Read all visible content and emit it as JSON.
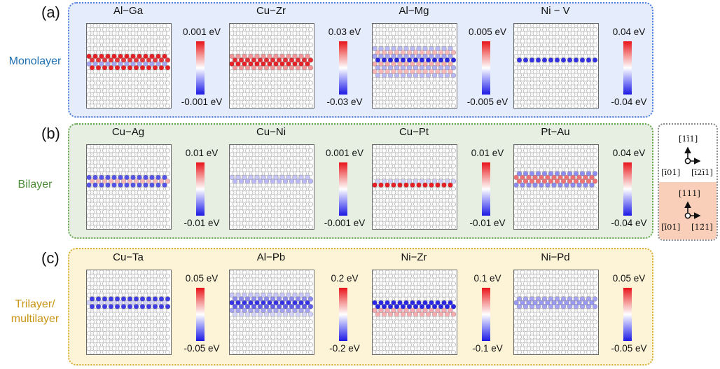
{
  "figure": {
    "panels": [
      {
        "label": "(a)",
        "row_label": "Monolayer",
        "systems": [
          {
            "name": "Al−Ga",
            "cbar_max": "0.001 eV",
            "cbar_min": "-0.001 eV",
            "rows": [
              0,
              0,
              0,
              0,
              0,
              0,
              0,
              0,
              0.95,
              0.85,
              -0.4,
              0.95,
              0,
              0,
              0,
              0,
              0,
              0,
              0,
              0,
              0,
              0
            ]
          },
          {
            "name": "Cu−Zr",
            "cbar_max": "0.03 eV",
            "cbar_min": "-0.03 eV",
            "rows": [
              0,
              0,
              0,
              0,
              0,
              0,
              0,
              0,
              0.45,
              0.9,
              0.95,
              0.45,
              0,
              0,
              0,
              0,
              0,
              0,
              0,
              0,
              0,
              0
            ]
          },
          {
            "name": "Al−Mg",
            "cbar_max": "0.005 eV",
            "cbar_min": "-0.005 eV",
            "rows": [
              0,
              0,
              0,
              0,
              0,
              0,
              -0.3,
              0.3,
              -0.4,
              -0.95,
              0.35,
              -0.35,
              0.3,
              -0.3,
              0,
              0,
              0,
              0,
              0,
              0,
              0,
              0
            ]
          },
          {
            "name": "Ni − V",
            "cbar_max": "0.04 eV",
            "cbar_min": "-0.04 eV",
            "rows": [
              0,
              0,
              0,
              0,
              0,
              0,
              0,
              0,
              0,
              -0.9,
              0,
              0,
              0,
              0,
              0,
              0,
              0,
              0,
              0,
              0,
              0,
              0
            ]
          }
        ]
      },
      {
        "label": "(b)",
        "row_label": "Bilayer",
        "systems": [
          {
            "name": "Cu−Ag",
            "cbar_max": "0.01 eV",
            "cbar_min": "-0.01 eV",
            "rows": [
              0,
              0,
              0,
              0,
              0,
              0,
              0,
              0,
              -0.75,
              0.3,
              -0.75,
              0,
              0,
              0,
              0,
              0,
              0,
              0,
              0,
              0,
              0,
              0
            ]
          },
          {
            "name": "Cu−Ni",
            "cbar_max": "0.001 eV",
            "cbar_min": "-0.001 eV",
            "rows": [
              0,
              0,
              0,
              0,
              0,
              0,
              0,
              0,
              -0.25,
              -0.3,
              0,
              0,
              0,
              0,
              0,
              0,
              0,
              0,
              0,
              0,
              0,
              0
            ]
          },
          {
            "name": "Cu−Pt",
            "cbar_max": "0.01 eV",
            "cbar_min": "-0.01 eV",
            "rows": [
              0,
              0,
              0,
              0,
              0,
              0,
              0,
              0,
              0,
              -0.2,
              0.95,
              0,
              0,
              0,
              0,
              0,
              0,
              0,
              0,
              0,
              0,
              0
            ]
          },
          {
            "name": "Pt−Au",
            "cbar_max": "0.04 eV",
            "cbar_min": "-0.04 eV",
            "rows": [
              0,
              0,
              0,
              0,
              0,
              0,
              0,
              -0.5,
              0.6,
              0.6,
              -0.5,
              0,
              0,
              0,
              0,
              0,
              0,
              0,
              0,
              0,
              0,
              0
            ]
          }
        ]
      },
      {
        "label": "(c)",
        "row_label": "Trilayer/\nmultilayer",
        "systems": [
          {
            "name": "Cu−Ta",
            "cbar_max": "0.05 eV",
            "cbar_min": "-0.05 eV",
            "rows": [
              0,
              0,
              0,
              0,
              0,
              0,
              0,
              -0.85,
              -0.2,
              -0.85,
              0,
              0,
              0,
              0,
              0,
              0,
              0,
              0,
              0,
              0,
              0,
              0
            ]
          },
          {
            "name": "Al−Pb",
            "cbar_max": "0.2 eV",
            "cbar_min": "-0.2 eV",
            "rows": [
              0,
              0,
              0,
              0,
              0,
              0,
              -0.25,
              -0.5,
              -0.9,
              -0.7,
              -0.4,
              -0.2,
              0,
              0,
              0,
              0,
              0,
              0,
              0,
              0,
              0,
              0
            ]
          },
          {
            "name": "Ni−Zr",
            "cbar_max": "0.1 eV",
            "cbar_min": "-0.1 eV",
            "rows": [
              0,
              0,
              0,
              0,
              0,
              0,
              0,
              0,
              -0.95,
              -0.95,
              0.35,
              0.35,
              0,
              0,
              0,
              0,
              0,
              0,
              0,
              0,
              0,
              0
            ]
          },
          {
            "name": "Ni−Pd",
            "cbar_max": "0.05 eV",
            "cbar_min": "-0.05 eV",
            "rows": [
              0,
              0,
              0,
              0,
              0,
              0,
              0,
              -0.4,
              -0.45,
              -0.4,
              0,
              0,
              0,
              0,
              0,
              0,
              0,
              0,
              0,
              0,
              0,
              0
            ]
          }
        ]
      }
    ],
    "orientation": {
      "upper": {
        "up": "[1ī1]",
        "left": "[ī01]",
        "right": "[ī2ī1]"
      },
      "lower": {
        "up": "[111]",
        "left": "[ī01]",
        "right": "[12̄1]"
      }
    },
    "colors": {
      "positive": "#e8131a",
      "negative": "#1d19e4",
      "neutral": "#ffffff",
      "panel_a": "#4d7be0",
      "panel_b": "#64a64d",
      "panel_c": "#d7b03a"
    }
  }
}
